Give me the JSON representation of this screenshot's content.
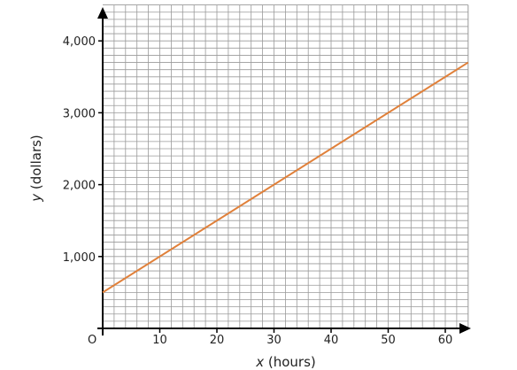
{
  "chart_data": {
    "type": "line",
    "xlabel": {
      "var": "x",
      "rest": " (hours)"
    },
    "ylabel": {
      "var": "y",
      "rest": " (dollars)"
    },
    "origin_label": "O",
    "x_ticks": [
      {
        "value": 10,
        "label": "10"
      },
      {
        "value": 20,
        "label": "20"
      },
      {
        "value": 30,
        "label": "30"
      },
      {
        "value": 40,
        "label": "40"
      },
      {
        "value": 50,
        "label": "50"
      },
      {
        "value": 60,
        "label": "60"
      }
    ],
    "y_ticks": [
      {
        "value": 1000,
        "label": "1,000"
      },
      {
        "value": 2000,
        "label": "2,000"
      },
      {
        "value": 3000,
        "label": "3,000"
      },
      {
        "value": 4000,
        "label": "4,000"
      }
    ],
    "xlim": [
      0,
      64
    ],
    "ylim": [
      0,
      4500
    ],
    "grid": true,
    "grid_step": {
      "x": 2,
      "y": 100
    },
    "series": [
      {
        "x": [
          0,
          64
        ],
        "y": [
          500,
          3700
        ]
      }
    ],
    "colors": {
      "line": "#e0803a",
      "grid": "#9a9a9a",
      "axis": "#000000"
    }
  }
}
